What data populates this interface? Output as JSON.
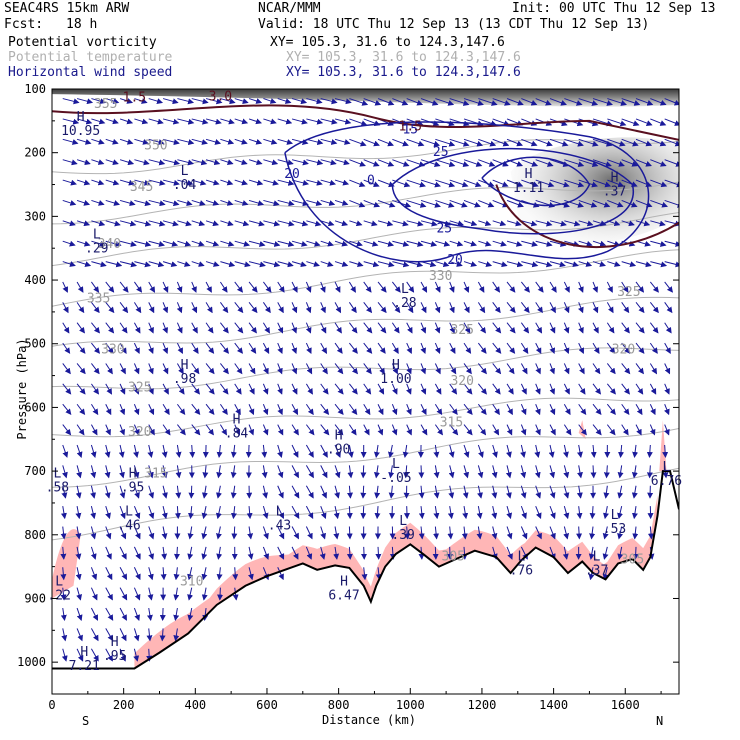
{
  "header": {
    "model": "SEAC4RS 15km ARW",
    "center": "NCAR/MMM",
    "init": "Init: 00 UTC Thu 12 Sep 13",
    "fcst_label": "Fcst:",
    "fcst_value": "18 h",
    "valid": "Valid: 18 UTC Thu 12 Sep 13 (13 CDT Thu 12 Sep 13)",
    "fields": [
      {
        "name": "Potential vorticity",
        "xy": "XY= 105.3, 31.6 to 124.3,147.6",
        "color": "#000000"
      },
      {
        "name": "Potential temperature",
        "xy": "XY= 105.3, 31.6 to 124.3,147.6",
        "color": "#b0b0b0"
      },
      {
        "name": "Horizontal wind speed",
        "xy": "XY= 105.3, 31.6 to 124.3,147.6",
        "color": "#1a1a8c"
      }
    ]
  },
  "chart_data": {
    "type": "cross-section",
    "xlabel": "Distance (km)",
    "ylabel": "Pressure (hPa)",
    "xlim": [
      0,
      1750
    ],
    "ylim": [
      1050,
      100
    ],
    "x_ticks": [
      0,
      200,
      400,
      600,
      800,
      1000,
      1200,
      1400,
      1600
    ],
    "y_ticks": [
      100,
      200,
      300,
      400,
      500,
      600,
      700,
      800,
      900,
      1000
    ],
    "x_end_labels": {
      "left": "S",
      "right": "N"
    },
    "colors": {
      "pv_line": "#5a1020",
      "pv_shade": "#ffb6b6",
      "theta": "#b4b4b4",
      "wind": "#1a1a9a",
      "terrain": "#000000"
    },
    "terrain": [
      [
        0,
        1010
      ],
      [
        230,
        1010
      ],
      [
        300,
        985
      ],
      [
        380,
        955
      ],
      [
        460,
        910
      ],
      [
        540,
        880
      ],
      [
        600,
        865
      ],
      [
        650,
        855
      ],
      [
        700,
        845
      ],
      [
        740,
        855
      ],
      [
        790,
        848
      ],
      [
        830,
        852
      ],
      [
        870,
        880
      ],
      [
        890,
        905
      ],
      [
        905,
        880
      ],
      [
        930,
        850
      ],
      [
        960,
        830
      ],
      [
        1000,
        815
      ],
      [
        1040,
        832
      ],
      [
        1080,
        850
      ],
      [
        1120,
        840
      ],
      [
        1180,
        825
      ],
      [
        1240,
        835
      ],
      [
        1280,
        860
      ],
      [
        1310,
        840
      ],
      [
        1350,
        820
      ],
      [
        1400,
        835
      ],
      [
        1440,
        860
      ],
      [
        1480,
        842
      ],
      [
        1510,
        860
      ],
      [
        1545,
        870
      ],
      [
        1580,
        845
      ],
      [
        1620,
        838
      ],
      [
        1650,
        855
      ],
      [
        1670,
        835
      ],
      [
        1690,
        770
      ],
      [
        1705,
        700
      ],
      [
        1725,
        700
      ],
      [
        1750,
        760
      ]
    ],
    "theta_labels": [
      {
        "t": "355",
        "x": 150,
        "p": 130
      },
      {
        "t": "350",
        "x": 290,
        "p": 195
      },
      {
        "t": "345",
        "x": 250,
        "p": 260
      },
      {
        "t": "340",
        "x": 160,
        "p": 350
      },
      {
        "t": "335",
        "x": 130,
        "p": 435
      },
      {
        "t": "330",
        "x": 170,
        "p": 515
      },
      {
        "t": "325",
        "x": 245,
        "p": 575
      },
      {
        "t": "320",
        "x": 245,
        "p": 645
      },
      {
        "t": "315",
        "x": 290,
        "p": 710
      },
      {
        "t": "310",
        "x": 390,
        "p": 880
      },
      {
        "t": "330",
        "x": 1085,
        "p": 400
      },
      {
        "t": "325",
        "x": 1145,
        "p": 485
      },
      {
        "t": "320",
        "x": 1145,
        "p": 565
      },
      {
        "t": "315",
        "x": 1115,
        "p": 630
      },
      {
        "t": "325",
        "x": 1610,
        "p": 425
      },
      {
        "t": "320",
        "x": 1595,
        "p": 515
      },
      {
        "t": "305",
        "x": 1120,
        "p": 840
      },
      {
        "t": "305",
        "x": 1620,
        "p": 845
      }
    ],
    "wind_contours": [
      {
        "label": "25",
        "x": 1085,
        "p": 205
      },
      {
        "label": "25",
        "x": 1095,
        "p": 325
      },
      {
        "label": "20",
        "x": 670,
        "p": 240
      },
      {
        "label": "20",
        "x": 1125,
        "p": 375
      },
      {
        "label": "15",
        "x": 1000,
        "p": 170
      },
      {
        "label": "0",
        "x": 890,
        "p": 250
      }
    ],
    "pv_labels": [
      {
        "t": "1.5",
        "x": 230,
        "p": 120
      },
      {
        "t": "3.0",
        "x": 470,
        "p": 118
      },
      {
        "t": "1.5",
        "x": 1000,
        "p": 165
      }
    ],
    "extrema": [
      {
        "t": "H",
        "v": "10.95",
        "x": 80,
        "p": 150
      },
      {
        "t": "L",
        "v": ".04",
        "x": 370,
        "p": 235
      },
      {
        "t": "L",
        "v": ".29",
        "x": 125,
        "p": 335
      },
      {
        "t": "L",
        "v": ".28",
        "x": 985,
        "p": 420
      },
      {
        "t": "H",
        "v": ".98",
        "x": 370,
        "p": 540
      },
      {
        "t": "H",
        "v": "1.00",
        "x": 960,
        "p": 540
      },
      {
        "t": "H",
        "v": ".84",
        "x": 515,
        "p": 625
      },
      {
        "t": "H",
        "v": ".90",
        "x": 800,
        "p": 650
      },
      {
        "t": "L",
        "v": "-.05",
        "x": 960,
        "p": 695
      },
      {
        "t": "H",
        "v": ".95",
        "x": 225,
        "p": 710
      },
      {
        "t": "L",
        "v": ".46",
        "x": 215,
        "p": 770
      },
      {
        "t": "L",
        "v": ".43",
        "x": 635,
        "p": 770
      },
      {
        "t": "L",
        "v": ".39",
        "x": 980,
        "p": 785
      },
      {
        "t": "L",
        "v": ".53",
        "x": 1570,
        "p": 775
      },
      {
        "t": "L",
        "v": ".58",
        "x": 15,
        "p": 710
      },
      {
        "t": "H",
        "v": "6.47",
        "x": 815,
        "p": 880
      },
      {
        "t": "H",
        "v": ".95",
        "x": 175,
        "p": 975
      },
      {
        "t": "H",
        "v": "7.21",
        "x": 90,
        "p": 990
      },
      {
        "t": "L",
        "v": ".76",
        "x": 1310,
        "p": 840
      },
      {
        "t": "L",
        "v": ".37",
        "x": 1520,
        "p": 840
      },
      {
        "t": "L",
        "v": "6.76",
        "x": 1715,
        "p": 700
      },
      {
        "t": "L",
        "v": ".22",
        "x": 20,
        "p": 880
      },
      {
        "t": "H",
        "v": "1.11",
        "x": 1330,
        "p": 240
      },
      {
        "t": "H",
        "v": ".37",
        "x": 1570,
        "p": 245
      }
    ]
  }
}
